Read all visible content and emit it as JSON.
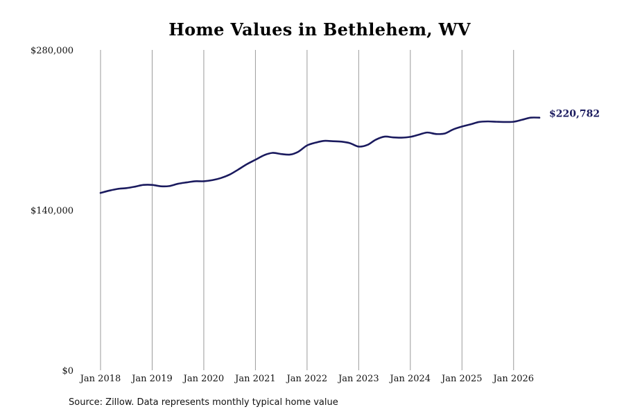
{
  "chart_data": {
    "type": "line",
    "title": "Home Values in Bethlehem, WV",
    "xlabel": "",
    "ylabel": "",
    "ylim": [
      0,
      280000
    ],
    "y_ticks": [
      {
        "value": 0,
        "label": "$0"
      },
      {
        "value": 140000,
        "label": "$140,000"
      },
      {
        "value": 280000,
        "label": "$280,000"
      }
    ],
    "x_ticks": [
      {
        "value": 2018.0,
        "label": "Jan 2018"
      },
      {
        "value": 2019.0,
        "label": "Jan 2019"
      },
      {
        "value": 2020.0,
        "label": "Jan 2020"
      },
      {
        "value": 2021.0,
        "label": "Jan 2021"
      },
      {
        "value": 2022.0,
        "label": "Jan 2022"
      },
      {
        "value": 2023.0,
        "label": "Jan 2023"
      },
      {
        "value": 2024.0,
        "label": "Jan 2024"
      },
      {
        "value": 2025.0,
        "label": "Jan 2025"
      },
      {
        "value": 2026.0,
        "label": "Jan 2026"
      }
    ],
    "xlim": [
      2018.0,
      2026.5
    ],
    "grid": "vertical",
    "line_color": "#1a1a5e",
    "end_label": "$220,782",
    "series": [
      {
        "x": [
          2018.0,
          2018.17,
          2018.33,
          2018.5,
          2018.67,
          2018.83,
          2019.0,
          2019.17,
          2019.33,
          2019.5,
          2019.67,
          2019.83,
          2020.0,
          2020.17,
          2020.33,
          2020.5,
          2020.67,
          2020.83,
          2021.0,
          2021.17,
          2021.33,
          2021.5,
          2021.67,
          2021.83,
          2022.0,
          2022.17,
          2022.33,
          2022.5,
          2022.67,
          2022.83,
          2023.0,
          2023.17,
          2023.33,
          2023.5,
          2023.67,
          2023.83,
          2024.0,
          2024.17,
          2024.33,
          2024.5,
          2024.67,
          2024.83,
          2025.0,
          2025.17,
          2025.33,
          2025.5,
          2025.67,
          2025.83,
          2026.0,
          2026.17,
          2026.33,
          2026.5
        ],
        "y": [
          155000,
          157000,
          158500,
          159200,
          160500,
          162000,
          162000,
          160800,
          161000,
          163000,
          164200,
          165200,
          165200,
          166200,
          168000,
          171000,
          175500,
          180000,
          184000,
          188000,
          190000,
          189000,
          188500,
          191000,
          196500,
          199000,
          200500,
          200200,
          199800,
          198500,
          195500,
          197000,
          201500,
          204200,
          203500,
          203300,
          204000,
          206000,
          207800,
          206500,
          207000,
          210500,
          213000,
          215000,
          217000,
          217500,
          217200,
          217000,
          217200,
          219000,
          220782,
          220782
        ]
      }
    ]
  },
  "footer": {
    "source": "Source: Zillow. Data represents monthly typical home value"
  }
}
